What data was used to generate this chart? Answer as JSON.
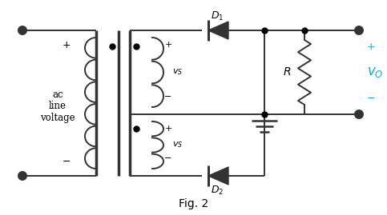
{
  "background_color": "#ffffff",
  "line_color": "#333333",
  "dot_color": "#000000",
  "cyan_color": "#00b4d8",
  "text_color": "#000000",
  "figsize": [
    4.83,
    2.69
  ],
  "dpi": 100,
  "label_ac": "ac\nline\nvoltage",
  "label_minus": "−",
  "fig_label": "Fig. 2"
}
